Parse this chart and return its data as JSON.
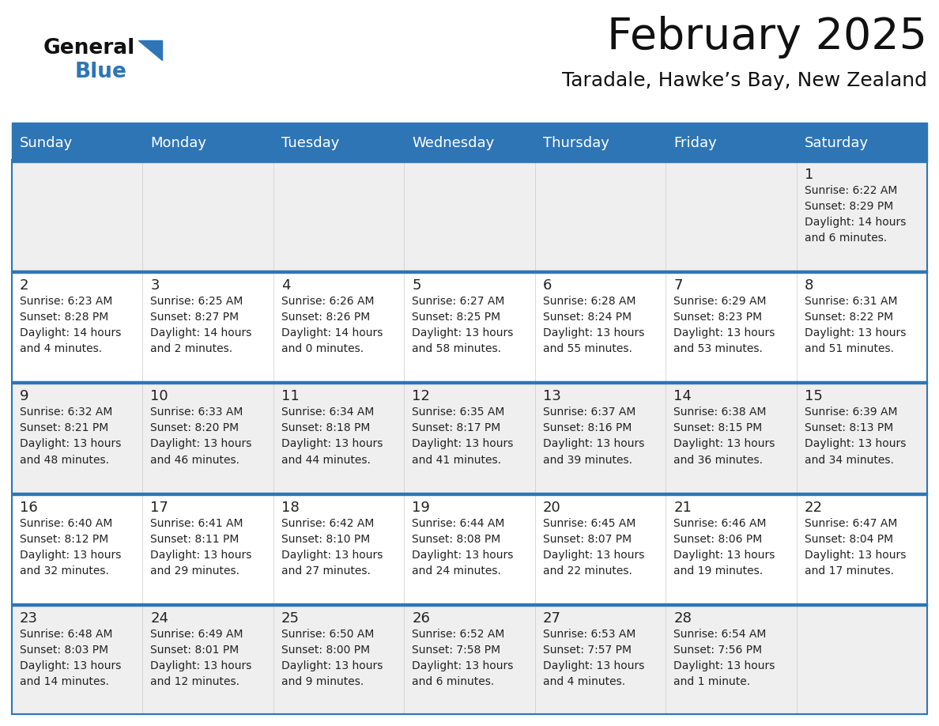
{
  "title": "February 2025",
  "subtitle": "Taradale, Hawke’s Bay, New Zealand",
  "days_of_week": [
    "Sunday",
    "Monday",
    "Tuesday",
    "Wednesday",
    "Thursday",
    "Friday",
    "Saturday"
  ],
  "header_bg": "#2e75b6",
  "header_text": "#ffffff",
  "cell_bg_odd": "#efefef",
  "cell_bg_even": "#ffffff",
  "border_color": "#2e75b6",
  "day_num_color": "#222222",
  "cell_text_color": "#222222",
  "title_color": "#111111",
  "subtitle_color": "#111111",
  "logo_general_color": "#111111",
  "logo_blue_color": "#2e75b6",
  "weeks": [
    [
      {
        "day": null,
        "info": null
      },
      {
        "day": null,
        "info": null
      },
      {
        "day": null,
        "info": null
      },
      {
        "day": null,
        "info": null
      },
      {
        "day": null,
        "info": null
      },
      {
        "day": null,
        "info": null
      },
      {
        "day": 1,
        "info": "Sunrise: 6:22 AM\nSunset: 8:29 PM\nDaylight: 14 hours\nand 6 minutes."
      }
    ],
    [
      {
        "day": 2,
        "info": "Sunrise: 6:23 AM\nSunset: 8:28 PM\nDaylight: 14 hours\nand 4 minutes."
      },
      {
        "day": 3,
        "info": "Sunrise: 6:25 AM\nSunset: 8:27 PM\nDaylight: 14 hours\nand 2 minutes."
      },
      {
        "day": 4,
        "info": "Sunrise: 6:26 AM\nSunset: 8:26 PM\nDaylight: 14 hours\nand 0 minutes."
      },
      {
        "day": 5,
        "info": "Sunrise: 6:27 AM\nSunset: 8:25 PM\nDaylight: 13 hours\nand 58 minutes."
      },
      {
        "day": 6,
        "info": "Sunrise: 6:28 AM\nSunset: 8:24 PM\nDaylight: 13 hours\nand 55 minutes."
      },
      {
        "day": 7,
        "info": "Sunrise: 6:29 AM\nSunset: 8:23 PM\nDaylight: 13 hours\nand 53 minutes."
      },
      {
        "day": 8,
        "info": "Sunrise: 6:31 AM\nSunset: 8:22 PM\nDaylight: 13 hours\nand 51 minutes."
      }
    ],
    [
      {
        "day": 9,
        "info": "Sunrise: 6:32 AM\nSunset: 8:21 PM\nDaylight: 13 hours\nand 48 minutes."
      },
      {
        "day": 10,
        "info": "Sunrise: 6:33 AM\nSunset: 8:20 PM\nDaylight: 13 hours\nand 46 minutes."
      },
      {
        "day": 11,
        "info": "Sunrise: 6:34 AM\nSunset: 8:18 PM\nDaylight: 13 hours\nand 44 minutes."
      },
      {
        "day": 12,
        "info": "Sunrise: 6:35 AM\nSunset: 8:17 PM\nDaylight: 13 hours\nand 41 minutes."
      },
      {
        "day": 13,
        "info": "Sunrise: 6:37 AM\nSunset: 8:16 PM\nDaylight: 13 hours\nand 39 minutes."
      },
      {
        "day": 14,
        "info": "Sunrise: 6:38 AM\nSunset: 8:15 PM\nDaylight: 13 hours\nand 36 minutes."
      },
      {
        "day": 15,
        "info": "Sunrise: 6:39 AM\nSunset: 8:13 PM\nDaylight: 13 hours\nand 34 minutes."
      }
    ],
    [
      {
        "day": 16,
        "info": "Sunrise: 6:40 AM\nSunset: 8:12 PM\nDaylight: 13 hours\nand 32 minutes."
      },
      {
        "day": 17,
        "info": "Sunrise: 6:41 AM\nSunset: 8:11 PM\nDaylight: 13 hours\nand 29 minutes."
      },
      {
        "day": 18,
        "info": "Sunrise: 6:42 AM\nSunset: 8:10 PM\nDaylight: 13 hours\nand 27 minutes."
      },
      {
        "day": 19,
        "info": "Sunrise: 6:44 AM\nSunset: 8:08 PM\nDaylight: 13 hours\nand 24 minutes."
      },
      {
        "day": 20,
        "info": "Sunrise: 6:45 AM\nSunset: 8:07 PM\nDaylight: 13 hours\nand 22 minutes."
      },
      {
        "day": 21,
        "info": "Sunrise: 6:46 AM\nSunset: 8:06 PM\nDaylight: 13 hours\nand 19 minutes."
      },
      {
        "day": 22,
        "info": "Sunrise: 6:47 AM\nSunset: 8:04 PM\nDaylight: 13 hours\nand 17 minutes."
      }
    ],
    [
      {
        "day": 23,
        "info": "Sunrise: 6:48 AM\nSunset: 8:03 PM\nDaylight: 13 hours\nand 14 minutes."
      },
      {
        "day": 24,
        "info": "Sunrise: 6:49 AM\nSunset: 8:01 PM\nDaylight: 13 hours\nand 12 minutes."
      },
      {
        "day": 25,
        "info": "Sunrise: 6:50 AM\nSunset: 8:00 PM\nDaylight: 13 hours\nand 9 minutes."
      },
      {
        "day": 26,
        "info": "Sunrise: 6:52 AM\nSunset: 7:58 PM\nDaylight: 13 hours\nand 6 minutes."
      },
      {
        "day": 27,
        "info": "Sunrise: 6:53 AM\nSunset: 7:57 PM\nDaylight: 13 hours\nand 4 minutes."
      },
      {
        "day": 28,
        "info": "Sunrise: 6:54 AM\nSunset: 7:56 PM\nDaylight: 13 hours\nand 1 minute."
      },
      {
        "day": null,
        "info": null
      }
    ]
  ]
}
